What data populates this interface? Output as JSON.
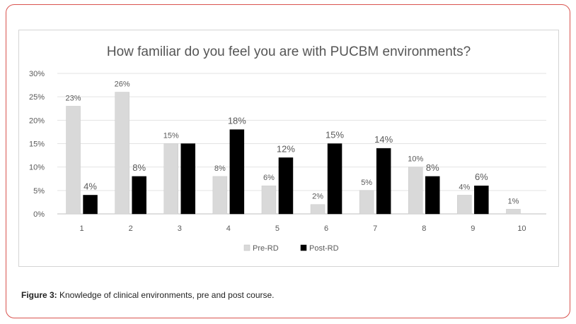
{
  "figure": {
    "caption_label": "Figure 3:",
    "caption_text": " Knowledge of clinical environments, pre and post course."
  },
  "chart_data": {
    "type": "bar",
    "title": "How familiar do you feel you are with PUCBM environments?",
    "categories": [
      "1",
      "2",
      "3",
      "4",
      "5",
      "6",
      "7",
      "8",
      "9",
      "10"
    ],
    "series": [
      {
        "name": "Pre-RD",
        "color": "#d9d9d9",
        "values": [
          23,
          26,
          15,
          8,
          6,
          2,
          5,
          10,
          4,
          1
        ],
        "labels": [
          "23%",
          "26%",
          "15%",
          "8%",
          "6%",
          "2%",
          "5%",
          "10%",
          "4%",
          "1%"
        ]
      },
      {
        "name": "Post-RD",
        "color": "#000000",
        "values": [
          4,
          8,
          15,
          18,
          12,
          15,
          14,
          8,
          6,
          null
        ],
        "labels": [
          "4%",
          "8%",
          "",
          "18%",
          "12%",
          "15%",
          "14%",
          "8%",
          "6%",
          ""
        ]
      }
    ],
    "yticks": [
      "0%",
      "5%",
      "10%",
      "15%",
      "20%",
      "25%",
      "30%"
    ],
    "ylim": [
      0,
      30
    ],
    "legend_position": "bottom",
    "grid": true
  }
}
